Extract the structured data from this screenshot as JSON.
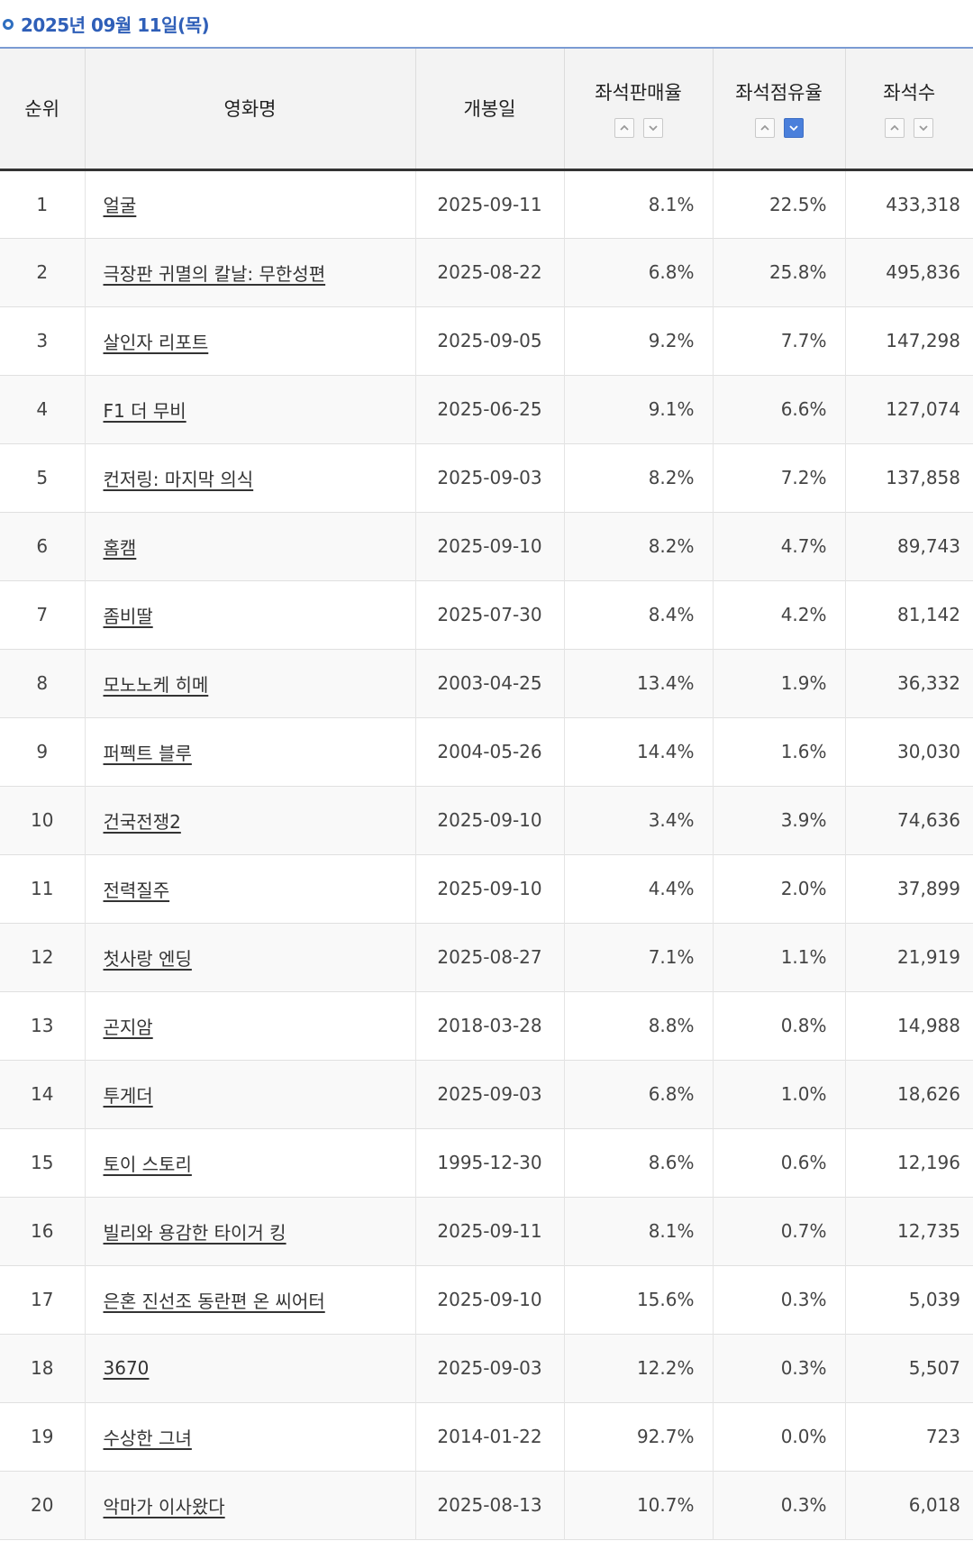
{
  "date_label": "2025년 09월 11일(목)",
  "columns": {
    "rank": "순위",
    "title": "영화명",
    "release": "개봉일",
    "sales_rate": "좌석판매율",
    "share_rate": "좌석점유율",
    "seats": "좌석수"
  },
  "sort": {
    "active": "share_rate_desc",
    "active_color": "#4a7fdb"
  },
  "rows": [
    {
      "rank": "1",
      "title": "얼굴",
      "release": "2025-09-11",
      "sales_rate": "8.1%",
      "share_rate": "22.5%",
      "seats": "433,318"
    },
    {
      "rank": "2",
      "title": "극장판 귀멸의 칼날: 무한성편",
      "release": "2025-08-22",
      "sales_rate": "6.8%",
      "share_rate": "25.8%",
      "seats": "495,836"
    },
    {
      "rank": "3",
      "title": "살인자 리포트",
      "release": "2025-09-05",
      "sales_rate": "9.2%",
      "share_rate": "7.7%",
      "seats": "147,298"
    },
    {
      "rank": "4",
      "title": "F1 더 무비",
      "release": "2025-06-25",
      "sales_rate": "9.1%",
      "share_rate": "6.6%",
      "seats": "127,074"
    },
    {
      "rank": "5",
      "title": "컨저링: 마지막 의식",
      "release": "2025-09-03",
      "sales_rate": "8.2%",
      "share_rate": "7.2%",
      "seats": "137,858"
    },
    {
      "rank": "6",
      "title": "홈캠",
      "release": "2025-09-10",
      "sales_rate": "8.2%",
      "share_rate": "4.7%",
      "seats": "89,743"
    },
    {
      "rank": "7",
      "title": "좀비딸",
      "release": "2025-07-30",
      "sales_rate": "8.4%",
      "share_rate": "4.2%",
      "seats": "81,142"
    },
    {
      "rank": "8",
      "title": "모노노케 히메",
      "release": "2003-04-25",
      "sales_rate": "13.4%",
      "share_rate": "1.9%",
      "seats": "36,332"
    },
    {
      "rank": "9",
      "title": "퍼펙트 블루",
      "release": "2004-05-26",
      "sales_rate": "14.4%",
      "share_rate": "1.6%",
      "seats": "30,030"
    },
    {
      "rank": "10",
      "title": "건국전쟁2",
      "release": "2025-09-10",
      "sales_rate": "3.4%",
      "share_rate": "3.9%",
      "seats": "74,636"
    },
    {
      "rank": "11",
      "title": "전력질주",
      "release": "2025-09-10",
      "sales_rate": "4.4%",
      "share_rate": "2.0%",
      "seats": "37,899"
    },
    {
      "rank": "12",
      "title": "첫사랑 엔딩",
      "release": "2025-08-27",
      "sales_rate": "7.1%",
      "share_rate": "1.1%",
      "seats": "21,919"
    },
    {
      "rank": "13",
      "title": "곤지암",
      "release": "2018-03-28",
      "sales_rate": "8.8%",
      "share_rate": "0.8%",
      "seats": "14,988"
    },
    {
      "rank": "14",
      "title": "투게더",
      "release": "2025-09-03",
      "sales_rate": "6.8%",
      "share_rate": "1.0%",
      "seats": "18,626"
    },
    {
      "rank": "15",
      "title": "토이 스토리",
      "release": "1995-12-30",
      "sales_rate": "8.6%",
      "share_rate": "0.6%",
      "seats": "12,196"
    },
    {
      "rank": "16",
      "title": "빌리와 용감한 타이거 킹",
      "release": "2025-09-11",
      "sales_rate": "8.1%",
      "share_rate": "0.7%",
      "seats": "12,735"
    },
    {
      "rank": "17",
      "title": "은혼 진선조 동란편 온 씨어터",
      "release": "2025-09-10",
      "sales_rate": "15.6%",
      "share_rate": "0.3%",
      "seats": "5,039"
    },
    {
      "rank": "18",
      "title": "3670",
      "release": "2025-09-03",
      "sales_rate": "12.2%",
      "share_rate": "0.3%",
      "seats": "5,507"
    },
    {
      "rank": "19",
      "title": "수상한 그녀",
      "release": "2014-01-22",
      "sales_rate": "92.7%",
      "share_rate": "0.0%",
      "seats": "723"
    },
    {
      "rank": "20",
      "title": "악마가 이사왔다",
      "release": "2025-08-13",
      "sales_rate": "10.7%",
      "share_rate": "0.3%",
      "seats": "6,018"
    }
  ]
}
